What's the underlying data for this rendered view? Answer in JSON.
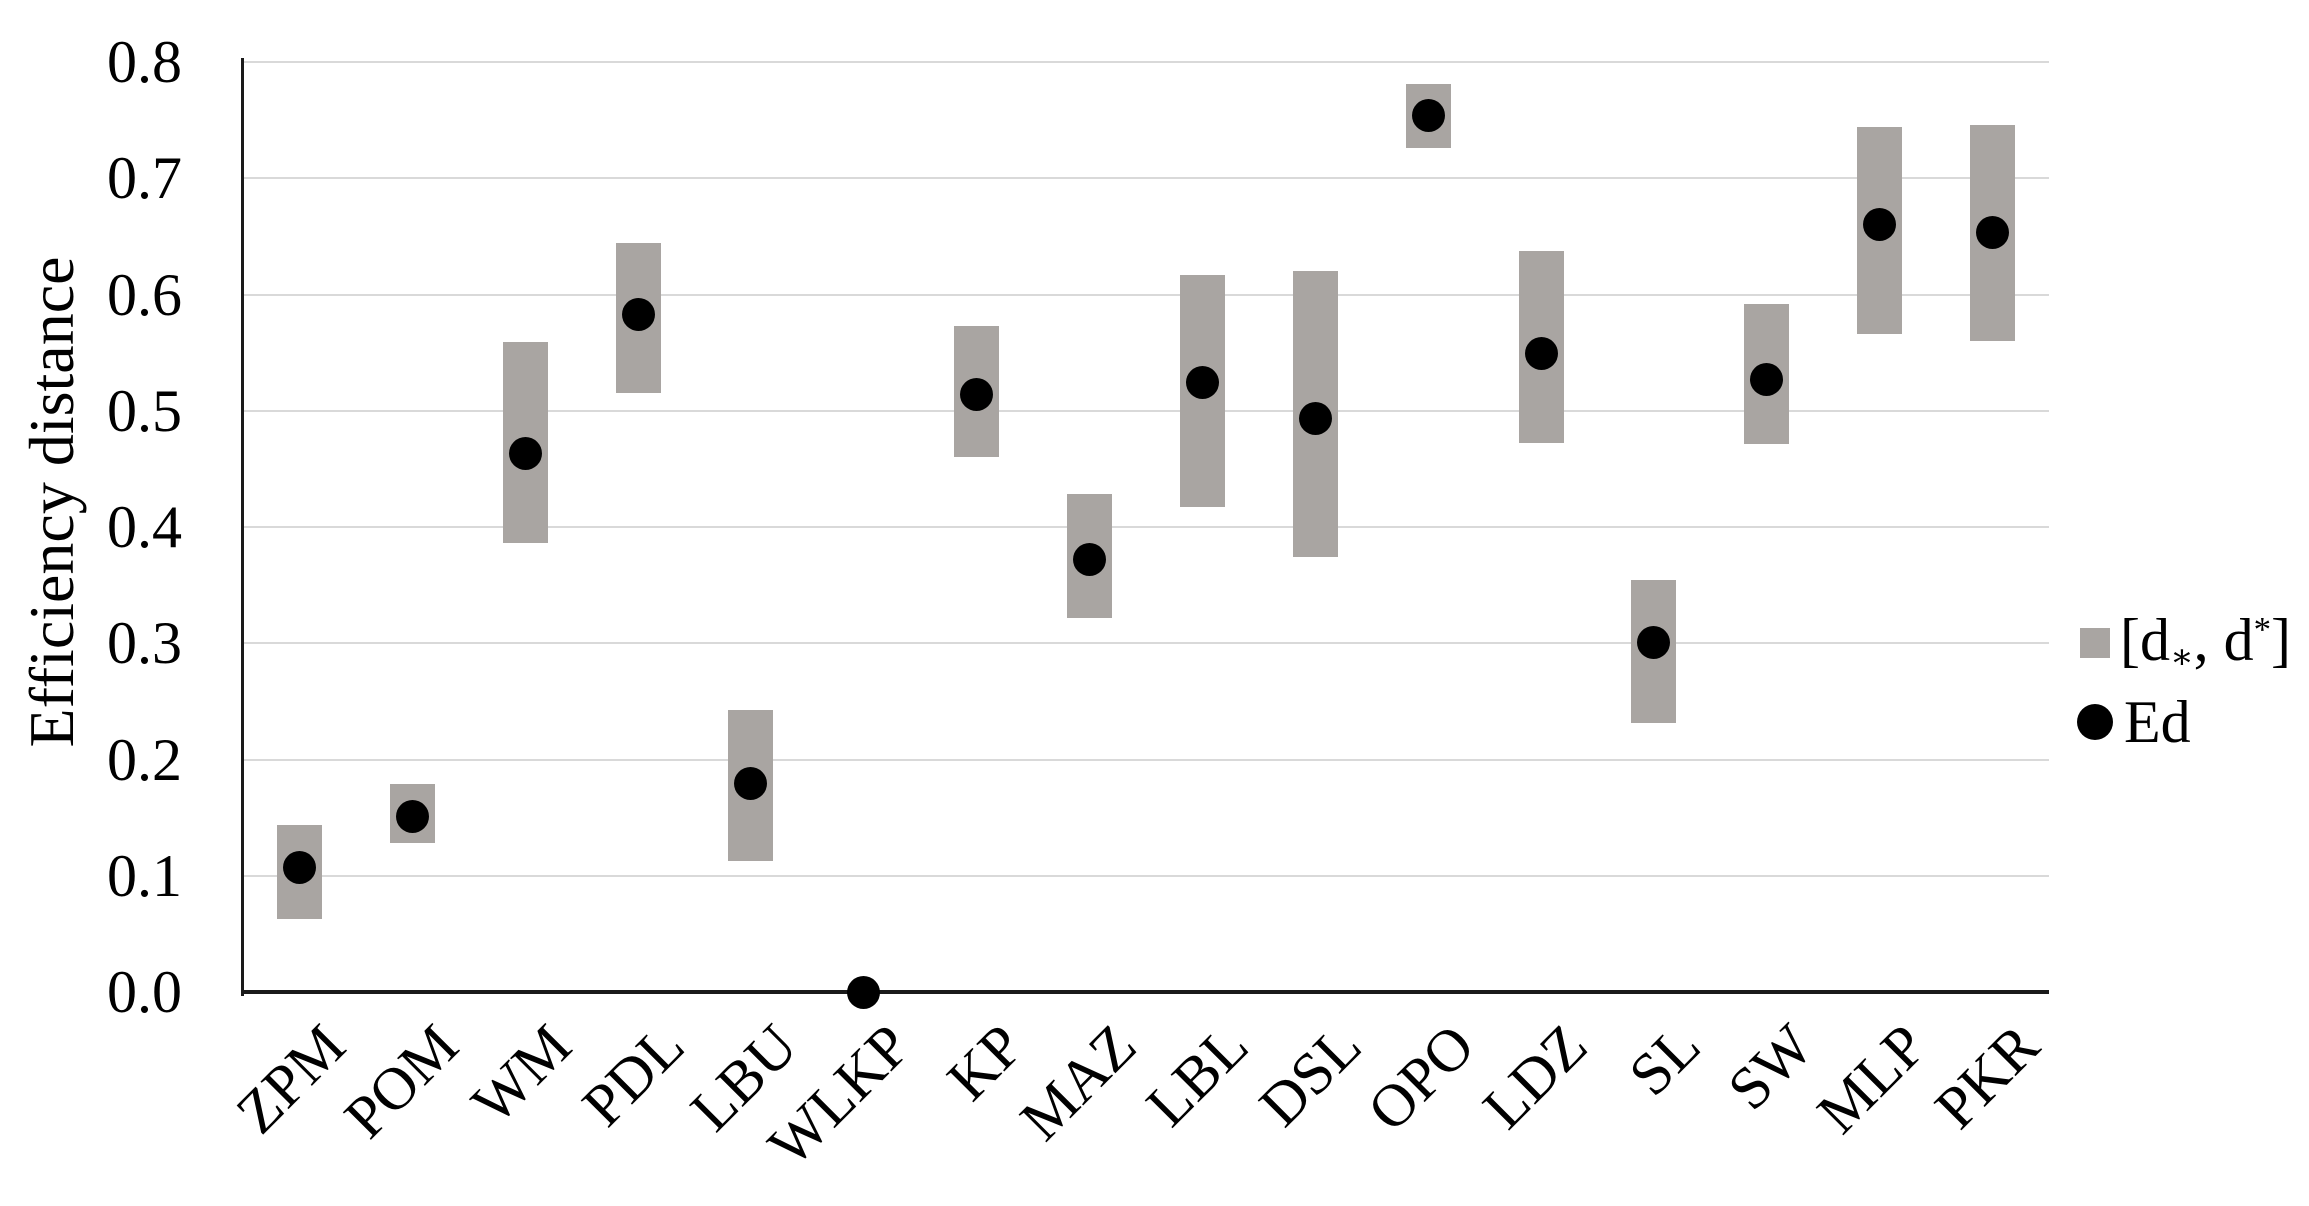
{
  "style": {
    "bar_color": "#a9a5a2",
    "point_color": "#000000",
    "grid_color": "#d9d9d9",
    "axis_color": "#1a1a1a",
    "background": "#ffffff"
  },
  "y_axis": {
    "title": "Efficiency distance",
    "tick_labels": [
      "0.0",
      "0.1",
      "0.2",
      "0.3",
      "0.4",
      "0.5",
      "0.6",
      "0.7",
      "0.8"
    ]
  },
  "legend": {
    "range_label_parts": {
      "open": "[d",
      "sub": "∗",
      "mid": ", d",
      "sup": "*",
      "close": "]"
    },
    "range_label_plain": "[d∗, d*]",
    "point_label": "Ed"
  },
  "chart_data": {
    "type": "bar",
    "subtype": "floating-range-bars-with-point-markers",
    "title": "",
    "xlabel": "",
    "ylabel": "Efficiency distance",
    "ylim": [
      0.0,
      0.8
    ],
    "ytick_step": 0.1,
    "grid": "horizontal",
    "legend_position": "right",
    "categories": [
      "ZPM",
      "POM",
      "WM",
      "PDL",
      "LBU",
      "WLKP",
      "KP",
      "MAZ",
      "LBL",
      "DSL",
      "OPO",
      "LDZ",
      "SL",
      "SW",
      "MLP",
      "PKR"
    ],
    "series": [
      {
        "name": "[d∗, d*]",
        "type": "range",
        "low": [
          0.063,
          0.128,
          0.386,
          0.515,
          0.113,
          0.0,
          0.46,
          0.322,
          0.417,
          0.374,
          0.726,
          0.472,
          0.231,
          0.471,
          0.566,
          0.56
        ],
        "high": [
          0.144,
          0.179,
          0.559,
          0.644,
          0.243,
          0.0,
          0.573,
          0.428,
          0.617,
          0.62,
          0.781,
          0.637,
          0.354,
          0.592,
          0.744,
          0.746
        ]
      },
      {
        "name": "Ed",
        "type": "point",
        "values": [
          0.107,
          0.151,
          0.463,
          0.583,
          0.179,
          0.0,
          0.514,
          0.372,
          0.524,
          0.493,
          0.754,
          0.549,
          0.301,
          0.527,
          0.66,
          0.653
        ]
      }
    ]
  }
}
